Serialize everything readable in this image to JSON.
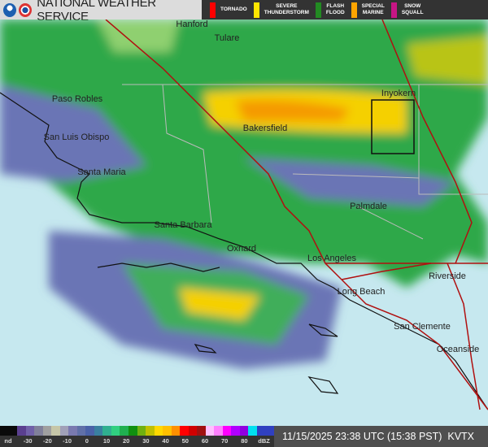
{
  "header": {
    "title": "NATIONAL WEATHER SERVICE",
    "logos": [
      "noaa-logo",
      "nws-logo"
    ],
    "warnings": [
      {
        "label": "TORNADO",
        "color": "#ff0000"
      },
      {
        "label": "SEVERE\nTHUNDERSTORM",
        "color": "#ffe500"
      },
      {
        "label": "FLASH\nFLOOD",
        "color": "#228b22"
      },
      {
        "label": "SPECIAL\nMARINE",
        "color": "#ffa500"
      },
      {
        "label": "SNOW\nSQUALL",
        "color": "#c71585"
      }
    ]
  },
  "map": {
    "cities": [
      "Hanford",
      "Tulare",
      "Paso Robles",
      "San Luis Obispo",
      "Santa Maria",
      "Bakersfield",
      "Inyokern",
      "Palmdale",
      "Santa Barbara",
      "Oxnard",
      "Los Angeles",
      "Long Beach",
      "Riverside",
      "San Clemente",
      "Oceanside"
    ],
    "colors": {
      "ocean": "#c6e8ef",
      "light_echo": "#6b74b5",
      "green": "#2ea84a",
      "yellow": "#f5d000",
      "orange": "#f59a00",
      "highway": "#b01010"
    }
  },
  "scale": {
    "labels": [
      "nd",
      "-30",
      "-20",
      "-10",
      "0",
      "10",
      "20",
      "30",
      "40",
      "50",
      "60",
      "70",
      "80",
      "dBZ"
    ],
    "colors": [
      "#0a0a0a",
      "#0a0a0a",
      "#5a3f8f",
      "#7060a8",
      "#80809a",
      "#a0a0a0",
      "#c6c6a8",
      "#a0a0b8",
      "#7a7ab0",
      "#6070a8",
      "#4a62a8",
      "#3a80a0",
      "#30b090",
      "#30d080",
      "#20b050",
      "#109010",
      "#70b010",
      "#c0c000",
      "#ffd800",
      "#ffc000",
      "#ff9000",
      "#ff0000",
      "#d00000",
      "#a01010",
      "#ffc0ff",
      "#ff80ff",
      "#ff00ff",
      "#b000ff",
      "#9000e0",
      "#00e0f0",
      "#3040c0",
      "#3040c0"
    ]
  },
  "footer": {
    "timestamp": "11/15/2025 23:38 UTC (15:38 PST)",
    "station": "KVTX"
  }
}
